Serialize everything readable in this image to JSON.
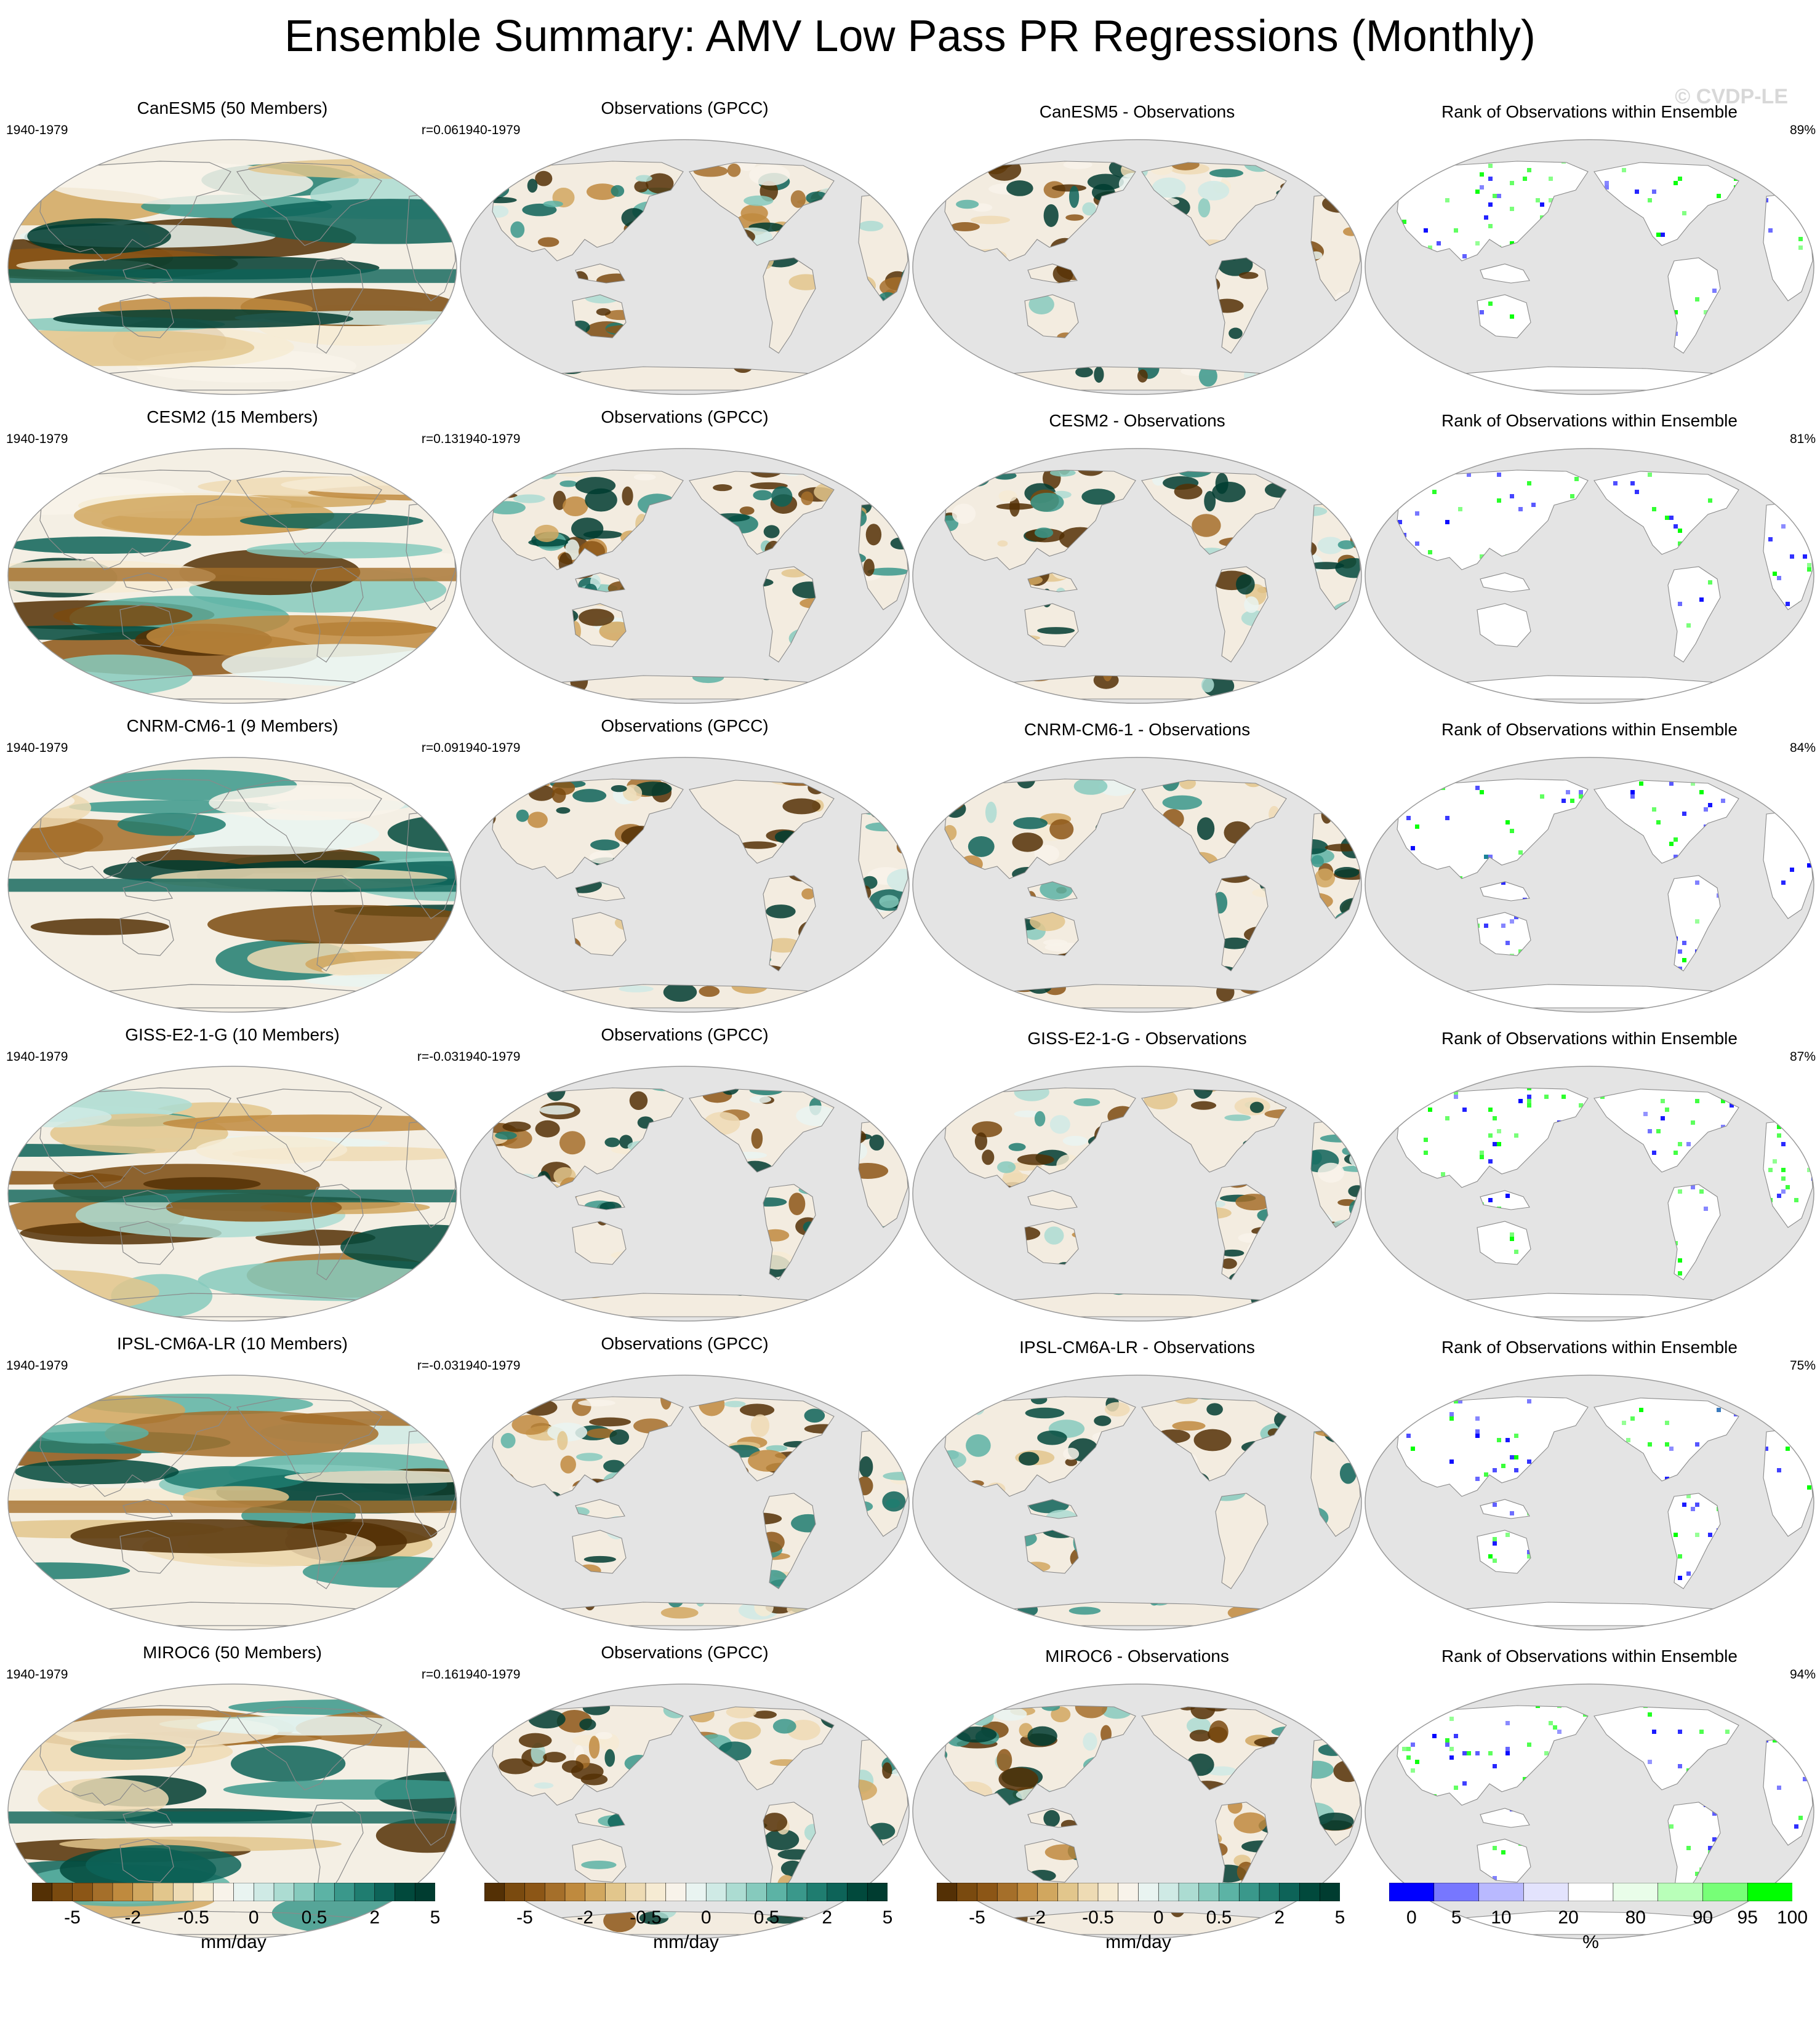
{
  "figure": {
    "title": "Ensemble Summary: AMV Low Pass PR Regressions (Monthly)",
    "watermark": "© CVDP-LE"
  },
  "chart_data": {
    "type": "heatmap",
    "rows": [
      {
        "model": "CanESM5 (50 Members)",
        "period": "1940-1979",
        "r": "r=0.06",
        "obs_title": "Observations (GPCC)",
        "diff_title": "CanESM5 - Observations",
        "rank_title": "Rank of Observations within Ensemble",
        "rank_pct": "89%"
      },
      {
        "model": "CESM2 (15 Members)",
        "period": "1940-1979",
        "r": "r=0.13",
        "obs_title": "Observations (GPCC)",
        "diff_title": "CESM2 - Observations",
        "rank_title": "Rank of Observations within Ensemble",
        "rank_pct": "81%"
      },
      {
        "model": "CNRM-CM6-1 (9 Members)",
        "period": "1940-1979",
        "r": "r=0.09",
        "obs_title": "Observations (GPCC)",
        "diff_title": "CNRM-CM6-1 - Observations",
        "rank_title": "Rank of Observations within Ensemble",
        "rank_pct": "84%"
      },
      {
        "model": "GISS-E2-1-G (10 Members)",
        "period": "1940-1979",
        "r": "r=-0.03",
        "obs_title": "Observations (GPCC)",
        "diff_title": "GISS-E2-1-G - Observations",
        "rank_title": "Rank of Observations within Ensemble",
        "rank_pct": "87%"
      },
      {
        "model": "IPSL-CM6A-LR (10 Members)",
        "period": "1940-1979",
        "r": "r=-0.03",
        "obs_title": "Observations (GPCC)",
        "diff_title": "IPSL-CM6A-LR - Observations",
        "rank_title": "Rank of Observations within Ensemble",
        "rank_pct": "75%"
      },
      {
        "model": "MIROC6 (50 Members)",
        "period": "1940-1979",
        "r": "r=0.16",
        "obs_title": "Observations (GPCC)",
        "diff_title": "MIROC6 - Observations",
        "rank_title": "Rank of Observations within Ensemble",
        "rank_pct": "94%"
      }
    ],
    "colorbars": [
      {
        "units": "mm/day",
        "ticks": [
          "-5",
          "-2",
          "-0.5",
          "0",
          "0.5",
          "2",
          "5"
        ],
        "colors": [
          "#543005",
          "#7a4a0f",
          "#8c5616",
          "#a56f2a",
          "#bf8a3e",
          "#d1a75f",
          "#e2c68c",
          "#eedbb4",
          "#f6ebd3",
          "#f8f3ea",
          "#e9f4f1",
          "#cfeae5",
          "#acdcd2",
          "#86cabd",
          "#5cb3a5",
          "#3a988b",
          "#1f7d70",
          "#0d6358",
          "#01493c",
          "#003c30"
        ]
      },
      {
        "units": "mm/day",
        "ticks": [
          "-5",
          "-2",
          "-0.5",
          "0",
          "0.5",
          "2",
          "5"
        ],
        "colors": [
          "#543005",
          "#7a4a0f",
          "#8c5616",
          "#a56f2a",
          "#bf8a3e",
          "#d1a75f",
          "#e2c68c",
          "#eedbb4",
          "#f6ebd3",
          "#f8f3ea",
          "#e9f4f1",
          "#cfeae5",
          "#acdcd2",
          "#86cabd",
          "#5cb3a5",
          "#3a988b",
          "#1f7d70",
          "#0d6358",
          "#01493c",
          "#003c30"
        ]
      },
      {
        "units": "mm/day",
        "ticks": [
          "-5",
          "-2",
          "-0.5",
          "0",
          "0.5",
          "2",
          "5"
        ],
        "colors": [
          "#543005",
          "#7a4a0f",
          "#8c5616",
          "#a56f2a",
          "#bf8a3e",
          "#d1a75f",
          "#e2c68c",
          "#eedbb4",
          "#f6ebd3",
          "#f8f3ea",
          "#e9f4f1",
          "#cfeae5",
          "#acdcd2",
          "#86cabd",
          "#5cb3a5",
          "#3a988b",
          "#1f7d70",
          "#0d6358",
          "#01493c",
          "#003c30"
        ]
      },
      {
        "units": "%",
        "ticks": [
          "0",
          "5",
          "10",
          "20",
          "80",
          "90",
          "95",
          "100"
        ],
        "colors": [
          "#0000ff",
          "#7777ff",
          "#b9b9ff",
          "#e3e3fd",
          "#ffffff",
          "#e9fde9",
          "#b9ffb9",
          "#77ff77",
          "#00ff00"
        ]
      }
    ],
    "colorbar_scales": [
      {
        "bounds": [
          -5,
          -2,
          -0.5,
          0,
          0.5,
          2,
          5
        ]
      },
      {
        "bounds": [
          -5,
          -2,
          -0.5,
          0,
          0.5,
          2,
          5
        ]
      },
      {
        "bounds": [
          -5,
          -2,
          -0.5,
          0,
          0.5,
          2,
          5
        ]
      },
      {
        "bounds": [
          0,
          5,
          10,
          20,
          80,
          90,
          95,
          100
        ]
      }
    ],
    "map_colors": {
      "land_mask": "#e4e4e4",
      "coast": "#8a8a8a",
      "dry": "#c49050",
      "wet": "#2f9b8a",
      "rank_low": "#0000ff",
      "rank_high": "#00ff00"
    }
  }
}
